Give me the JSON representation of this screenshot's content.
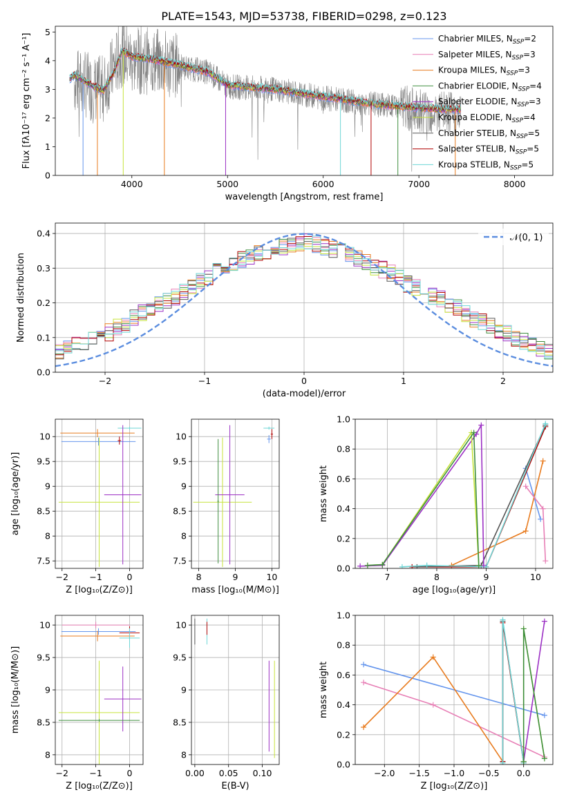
{
  "figure": {
    "title": "PLATE=1543, MJD=53738, FIBERID=0298, z=0.123"
  },
  "series_styles": [
    {
      "name": "Chabrier MILES",
      "label": "Chabrier MILES, N",
      "sub": "SSP",
      "eq": "=2",
      "color": "#6495ED"
    },
    {
      "name": "Salpeter MILES",
      "label": "Salpeter MILES, N",
      "sub": "SSP",
      "eq": "=3",
      "color": "#E77EB5"
    },
    {
      "name": "Kroupa MILES",
      "label": "Kroupa MILES, N",
      "sub": "SSP",
      "eq": "=3",
      "color": "#E87B1E"
    },
    {
      "name": "Chabrier ELODIE",
      "label": "Chabrier ELODIE, N",
      "sub": "SSP",
      "eq": "=4",
      "color": "#3E8E3E"
    },
    {
      "name": "Salpeter ELODIE",
      "label": "Salpeter ELODIE, N",
      "sub": "SSP",
      "eq": "=3",
      "color": "#9B2FC4"
    },
    {
      "name": "Kroupa ELODIE",
      "label": "Kroupa ELODIE, N",
      "sub": "SSP",
      "eq": "=4",
      "color": "#C6E33A"
    },
    {
      "name": "Chabrier STELIB",
      "label": "Chabrier STELIB, N",
      "sub": "SSP",
      "eq": "=5",
      "color": "#555555"
    },
    {
      "name": "Salpeter STELIB",
      "label": "Salpeter STELIB, N",
      "sub": "SSP",
      "eq": "=5",
      "color": "#B00000"
    },
    {
      "name": "Kroupa STELIB",
      "label": "Kroupa STELIB, N",
      "sub": "SSP",
      "eq": "=5",
      "color": "#6DD6D6"
    }
  ],
  "chart_data": [
    {
      "id": "spectrum",
      "type": "line",
      "xlabel": "wavelength [Angstrom, rest frame]",
      "ylabel": "Flux [f",
      "ylabel_full": "Flux [fλ10⁻¹⁷ erg cm⁻² s⁻¹ A⁻¹]",
      "xlim": [
        3200,
        8400
      ],
      "ylim": [
        0,
        5.2
      ],
      "xticks": [
        4000,
        5000,
        6000,
        7000,
        8000
      ],
      "yticks": [
        0,
        1,
        2,
        3,
        4,
        5
      ],
      "data_color": "#808080",
      "data_envelope": {
        "x": [
          3400,
          3500,
          3600,
          3700,
          3800,
          3900,
          4000,
          4200,
          4500,
          4800,
          5000,
          5500,
          6000,
          6500,
          7000,
          7200,
          7400
        ],
        "y": [
          3.3,
          3.2,
          3.0,
          3.0,
          3.7,
          4.3,
          4.0,
          4.0,
          3.8,
          3.6,
          3.1,
          3.0,
          2.7,
          2.5,
          2.3,
          2.2,
          2.1
        ]
      },
      "model_envelope": {
        "x": [
          3350,
          3400,
          3500,
          3600,
          3700,
          3800,
          3900,
          4000,
          4200,
          4500,
          4800,
          5000,
          5500,
          6000,
          6500,
          7000,
          7300,
          7440
        ],
        "y": [
          3.35,
          3.5,
          3.3,
          3.1,
          2.95,
          3.5,
          4.35,
          4.15,
          4.05,
          3.85,
          3.6,
          3.15,
          3.0,
          2.75,
          2.5,
          2.35,
          2.3,
          2.3
        ]
      }
    },
    {
      "id": "residuals",
      "type": "histogram",
      "xlabel": "(data-model)/error",
      "ylabel": "Normed distribution",
      "xlim": [
        -2.5,
        2.5
      ],
      "ylim": [
        0,
        0.43
      ],
      "xticks": [
        -2,
        -1,
        0,
        1,
        2
      ],
      "yticks": [
        0.0,
        0.1,
        0.2,
        0.3,
        0.4
      ],
      "legend_label": "𝒩(0, 1)",
      "gaussian_color": "#5B8DDF",
      "bin_width": 0.1,
      "base_values": [
        0.06,
        0.07,
        0.078,
        0.085,
        0.095,
        0.105,
        0.115,
        0.13,
        0.14,
        0.155,
        0.17,
        0.18,
        0.195,
        0.205,
        0.215,
        0.23,
        0.245,
        0.26,
        0.275,
        0.29,
        0.305,
        0.315,
        0.325,
        0.335,
        0.345,
        0.35,
        0.355,
        0.36,
        0.365,
        0.37,
        0.375,
        0.368,
        0.36,
        0.355,
        0.348,
        0.34,
        0.33,
        0.32,
        0.305,
        0.295,
        0.285,
        0.27,
        0.255,
        0.245,
        0.235,
        0.22,
        0.21,
        0.195,
        0.185,
        0.17,
        0.155,
        0.145,
        0.135,
        0.12,
        0.11,
        0.1,
        0.09,
        0.08,
        0.07,
        0.062
      ]
    },
    {
      "id": "age-vs-z",
      "type": "scatter",
      "xlabel": "Z [log₁₀(Z/Z⊙)]",
      "ylabel": "age  [log₁₀(age/yr)]",
      "xlim": [
        -2.2,
        0.4
      ],
      "ylim": [
        7.35,
        10.35
      ],
      "xticks": [
        -2,
        -1,
        0
      ],
      "yticks": [
        7.5,
        8.0,
        8.5,
        9.0,
        9.5,
        10.0
      ],
      "points": [
        {
          "s": 0,
          "x": -0.92,
          "y": 9.9,
          "xerr": 1.1,
          "yerr": 0.08
        },
        {
          "s": 2,
          "x": -0.95,
          "y": 10.07,
          "xerr": 1.1,
          "yerr": 0.08
        },
        {
          "s": 8,
          "x": 0.0,
          "y": 10.17,
          "xerr": 0.35,
          "yerr": 0.03
        },
        {
          "s": 7,
          "x": -0.3,
          "y": 9.92,
          "xerr": 0.05,
          "yerr": 0.08
        },
        {
          "s": 5,
          "x": -0.9,
          "y": 8.68,
          "xerr": 1.2,
          "yerr": 1.3
        },
        {
          "s": 4,
          "x": -0.2,
          "y": 8.83,
          "xerr": 0.55,
          "yerr": 1.4
        }
      ]
    },
    {
      "id": "age-vs-mass",
      "type": "scatter",
      "xlabel": "mass [log₁₀(M/M⊙)]",
      "ylabel": "",
      "xlim": [
        7.8,
        10.2
      ],
      "ylim": [
        7.35,
        10.35
      ],
      "xticks": [
        8,
        9,
        10
      ],
      "yticks": [
        7.5,
        8.0,
        8.5,
        9.0,
        9.5,
        10.0
      ],
      "points": [
        {
          "s": 0,
          "x": 9.92,
          "y": 9.95,
          "xerr": 0.05,
          "yerr": 0.08
        },
        {
          "s": 8,
          "x": 9.92,
          "y": 10.17,
          "xerr": 0.15,
          "yerr": 0.03
        },
        {
          "s": 7,
          "x": 10.0,
          "y": 10.05,
          "xerr": 0.03,
          "yerr": 0.1
        },
        {
          "s": 5,
          "x": 8.65,
          "y": 8.68,
          "xerr": 0.8,
          "yerr": 1.3
        },
        {
          "s": 4,
          "x": 8.85,
          "y": 8.83,
          "xerr": 0.4,
          "yerr": 1.4
        },
        {
          "s": 3,
          "x": 8.53,
          "y": 8.7,
          "xerr": 0.02,
          "yerr": 1.25
        }
      ]
    },
    {
      "id": "weight-vs-age",
      "type": "line",
      "xlabel": "age  [log₁₀(age/yr)]",
      "ylabel": "mass weight",
      "xlim": [
        6.35,
        10.35
      ],
      "ylim": [
        0,
        1
      ],
      "xticks": [
        7,
        8,
        9,
        10
      ],
      "yticks": [
        0.0,
        0.2,
        0.4,
        0.6,
        0.8,
        1.0
      ],
      "series": [
        {
          "s": 0,
          "x": [
            9.8,
            10.1
          ],
          "y": [
            0.67,
            0.33
          ]
        },
        {
          "s": 2,
          "x": [
            8.3,
            9.8,
            10.15
          ],
          "y": [
            0.02,
            0.25,
            0.72
          ]
        },
        {
          "s": 1,
          "x": [
            9.8,
            10.15,
            10.2
          ],
          "y": [
            0.55,
            0.4,
            0.05
          ]
        },
        {
          "s": 7,
          "x": [
            7.5,
            9.0,
            10.2
          ],
          "y": [
            0.01,
            0.01,
            0.95
          ]
        },
        {
          "s": 6,
          "x": [
            7.6,
            8.9,
            10.2
          ],
          "y": [
            0.01,
            0.02,
            0.96
          ]
        },
        {
          "s": 8,
          "x": [
            7.3,
            7.8,
            9.0,
            10.2
          ],
          "y": [
            0.01,
            0.02,
            0.01,
            0.97
          ]
        },
        {
          "s": 4,
          "x": [
            6.45,
            6.9,
            8.8,
            8.9,
            8.95
          ],
          "y": [
            0.015,
            0.02,
            0.9,
            0.96,
            0.02
          ]
        },
        {
          "s": 5,
          "x": [
            6.6,
            6.9,
            8.7,
            8.85
          ],
          "y": [
            0.02,
            0.025,
            0.91,
            0.02
          ]
        },
        {
          "s": 3,
          "x": [
            6.6,
            6.9,
            8.75,
            8.85
          ],
          "y": [
            0.02,
            0.025,
            0.91,
            0.02
          ]
        }
      ]
    },
    {
      "id": "mass-vs-z",
      "type": "scatter",
      "xlabel": "Z [log₁₀(Z/Z⊙)]",
      "ylabel": "mass [log₁₀(M/M⊙)]",
      "xlim": [
        -2.2,
        0.4
      ],
      "ylim": [
        7.85,
        10.15
      ],
      "xticks": [
        -2,
        -1,
        0
      ],
      "yticks": [
        8.0,
        8.5,
        9.0,
        9.5,
        10.0
      ],
      "points": [
        {
          "s": 0,
          "x": -0.92,
          "y": 9.9,
          "xerr": 1.1,
          "yerr": 0.05
        },
        {
          "s": 1,
          "x": -1.0,
          "y": 10.0,
          "xerr": 1.0,
          "yerr": 0.05
        },
        {
          "s": 2,
          "x": -0.95,
          "y": 9.83,
          "xerr": 1.1,
          "yerr": 0.08
        },
        {
          "s": 7,
          "x": -0.0,
          "y": 9.88,
          "xerr": 0.3,
          "yerr": 0.1
        },
        {
          "s": 8,
          "x": -0.0,
          "y": 9.8,
          "xerr": 0.3,
          "yerr": 0.15
        },
        {
          "s": 5,
          "x": -0.9,
          "y": 8.65,
          "xerr": 1.2,
          "yerr": 0.8
        },
        {
          "s": 4,
          "x": -0.2,
          "y": 8.86,
          "xerr": 0.55,
          "yerr": 0.5
        },
        {
          "s": 3,
          "x": -0.9,
          "y": 8.53,
          "xerr": 1.2,
          "yerr": 0.02
        }
      ]
    },
    {
      "id": "mass-vs-ebv",
      "type": "scatter",
      "xlabel": "E(B-V)",
      "ylabel": "",
      "xlim": [
        -0.005,
        0.125
      ],
      "ylim": [
        7.85,
        10.15
      ],
      "xticks": [
        0.0,
        0.05,
        0.1
      ],
      "xticklabels": [
        "0.00",
        "0.05",
        "0.10"
      ],
      "yticks": [
        8.0,
        8.5,
        9.0,
        9.5,
        10.0
      ],
      "points": [
        {
          "s": 6,
          "x": 0.0,
          "y": 9.9,
          "xerr": 0,
          "yerr": 0.2
        },
        {
          "s": 8,
          "x": 0.018,
          "y": 9.9,
          "xerr": 0,
          "yerr": 0.2
        },
        {
          "s": 7,
          "x": 0.018,
          "y": 9.95,
          "xerr": 0,
          "yerr": 0.1
        },
        {
          "s": 4,
          "x": 0.11,
          "y": 8.75,
          "xerr": 0,
          "yerr": 0.7
        },
        {
          "s": 5,
          "x": 0.118,
          "y": 8.7,
          "xerr": 0,
          "yerr": 0.75
        }
      ]
    },
    {
      "id": "weight-vs-z",
      "type": "line",
      "xlabel": "Z [log₁₀(Z/Z⊙)]",
      "ylabel": "mass weight",
      "xlim": [
        -2.42,
        0.42
      ],
      "ylim": [
        0,
        1
      ],
      "xticks": [
        -2.0,
        -1.5,
        -1.0,
        -0.5,
        0.0
      ],
      "xticklabels": [
        "−2.0",
        "−1.5",
        "−1.0",
        "−0.5",
        "0.0"
      ],
      "yticks": [
        0.0,
        0.2,
        0.4,
        0.6,
        0.8,
        1.0
      ],
      "series": [
        {
          "s": 0,
          "x": [
            -2.3,
            0.3
          ],
          "y": [
            0.67,
            0.33
          ]
        },
        {
          "s": 1,
          "x": [
            -2.3,
            -1.3,
            0.3
          ],
          "y": [
            0.55,
            0.4,
            0.05
          ]
        },
        {
          "s": 2,
          "x": [
            -2.3,
            -1.3,
            -0.3
          ],
          "y": [
            0.25,
            0.72,
            0.02
          ]
        },
        {
          "s": 6,
          "x": [
            -0.3,
            -0.3,
            0.0
          ],
          "y": [
            0.02,
            0.96,
            0.02
          ]
        },
        {
          "s": 7,
          "x": [
            -0.3,
            -0.3,
            0.0
          ],
          "y": [
            0.02,
            0.95,
            0.01
          ]
        },
        {
          "s": 8,
          "x": [
            -0.3,
            -0.3,
            0.0,
            0.0
          ],
          "y": [
            0.01,
            0.97,
            0.01,
            0.02
          ]
        },
        {
          "s": 4,
          "x": [
            0.0,
            0.3
          ],
          "y": [
            0.02,
            0.96
          ]
        },
        {
          "s": 5,
          "x": [
            0.0,
            0.0,
            0.3
          ],
          "y": [
            0.02,
            0.91,
            0.04
          ]
        },
        {
          "s": 3,
          "x": [
            0.0,
            0.0,
            0.3
          ],
          "y": [
            0.02,
            0.91,
            0.04
          ]
        }
      ]
    }
  ]
}
